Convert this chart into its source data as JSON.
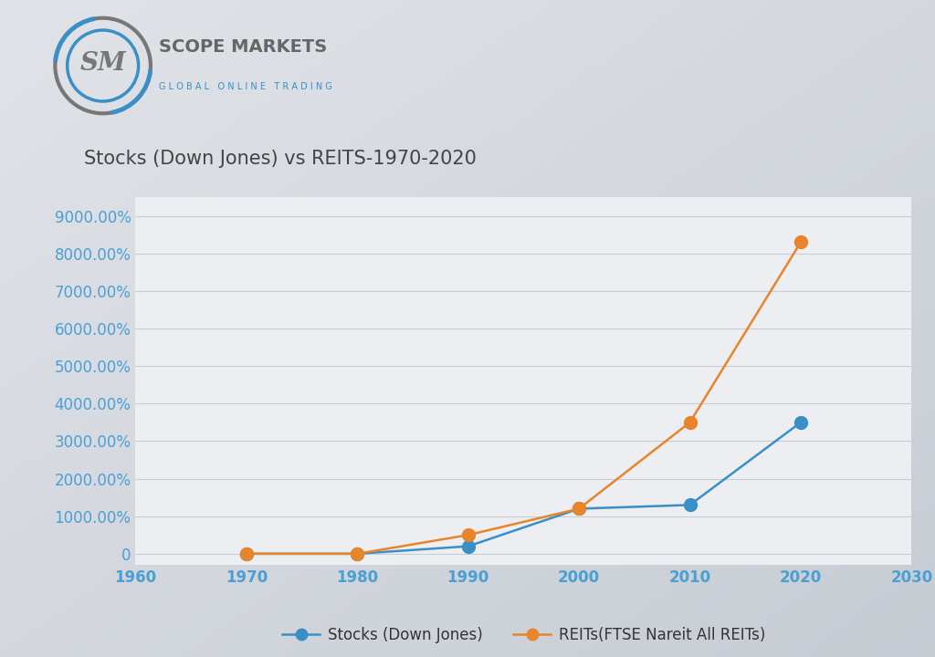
{
  "title": "Stocks (Down Jones) vs REITS-1970-2020",
  "x_years": [
    1970,
    1980,
    1990,
    2000,
    2010,
    2020
  ],
  "stocks_values": [
    0,
    0,
    200,
    1200,
    1300,
    3500
  ],
  "reits_values": [
    0,
    0,
    500,
    1200,
    3500,
    8300
  ],
  "stocks_label": "Stocks (Down Jones)",
  "reits_label": "REITs(FTSE Nareit All REITs)",
  "stocks_color": "#3a8fc7",
  "reits_color": "#E8842A",
  "xlim": [
    1960,
    2030
  ],
  "ylim": [
    -300,
    9500
  ],
  "yticks": [
    0,
    1000,
    2000,
    3000,
    4000,
    5000,
    6000,
    7000,
    8000,
    9000
  ],
  "xticks": [
    1960,
    1970,
    1980,
    1990,
    2000,
    2010,
    2020,
    2030
  ],
  "bg_color_top": "#d4d8de",
  "bg_color_bottom": "#c0c4cc",
  "plot_bg_color": "#eceef2",
  "grid_color": "#c8ccd4",
  "tick_color": "#4a9fd4",
  "title_color": "#444444",
  "title_fontsize": 15,
  "tick_fontsize": 12,
  "legend_fontsize": 12,
  "line_width": 1.8,
  "marker_size": 10,
  "logo_circle_outer_color": "#777777",
  "logo_circle_inner_color": "#3a8fc7",
  "logo_text_color": "#666666",
  "logo_brand_color": "#666666",
  "logo_sub_color": "#3a8fc7"
}
